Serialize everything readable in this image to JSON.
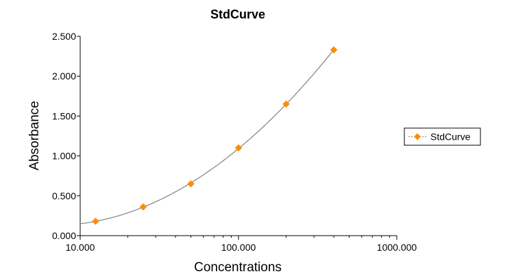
{
  "chart_data": {
    "type": "scatter",
    "title": "StdCurve",
    "xlabel": "Concentrations",
    "ylabel": "Absorbance",
    "xscale": "log",
    "xlim": [
      10,
      1000
    ],
    "ylim": [
      0,
      2.5
    ],
    "x_ticks": [
      10,
      100,
      1000
    ],
    "x_tick_labels": [
      "10.000",
      "100.000",
      "1000.000"
    ],
    "y_ticks": [
      0,
      0.5,
      1.0,
      1.5,
      2.0,
      2.5
    ],
    "y_tick_labels": [
      "0.000",
      "0.500",
      "1.000",
      "1.500",
      "2.000",
      "2.500"
    ],
    "grid": false,
    "legend": "right",
    "series": [
      {
        "name": "StdCurve",
        "color": "#ff8c00",
        "marker": "diamond",
        "x": [
          12.5,
          25,
          50,
          100,
          200,
          400
        ],
        "y": [
          0.18,
          0.36,
          0.65,
          1.1,
          1.65,
          2.33
        ],
        "fit_line_color": "#8a8a8a"
      }
    ]
  }
}
